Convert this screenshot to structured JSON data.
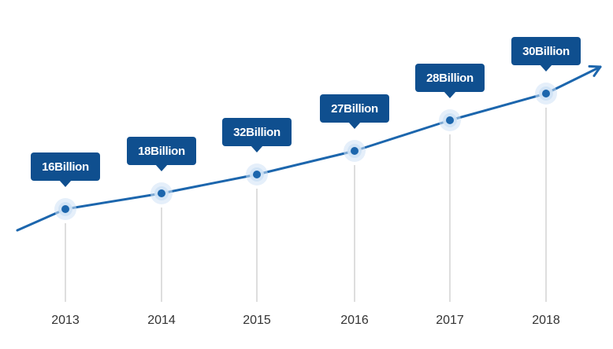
{
  "chart_data": {
    "type": "line",
    "title": "",
    "xlabel": "",
    "ylabel": "",
    "categories": [
      "2013",
      "2014",
      "2015",
      "2016",
      "2017",
      "2018"
    ],
    "data_labels": [
      "16Billion",
      "18Billion",
      "32Billion",
      "27Billion",
      "28Billion",
      "30Billion"
    ],
    "legend": "none",
    "grid": false,
    "colors": {
      "line": "#1c66ad",
      "point": "#1c66ad",
      "point_halo": "#cfe2f5",
      "callout": "#0f4f8f",
      "guide_line": "#c8c8c8",
      "tick_text": "#333333"
    }
  }
}
